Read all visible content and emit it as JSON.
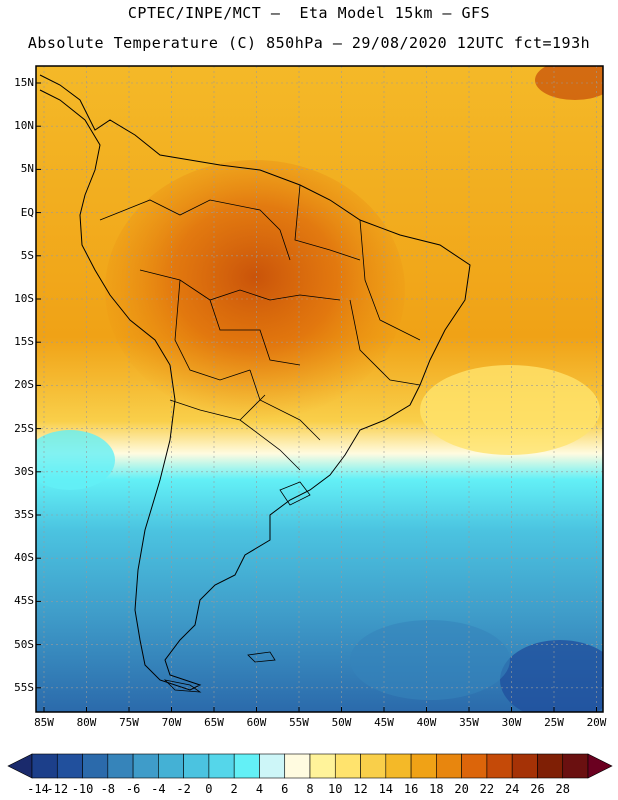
{
  "header": {
    "line1": "CPTEC/INPE/MCT –  Eta Model 15km – GFS",
    "line2": "Absolute Temperature (C) 850hPa – 29/08/2020 12UTC fct=193h"
  },
  "axes": {
    "lat_labels": [
      "15N",
      "10N",
      "5N",
      "EQ",
      "5S",
      "10S",
      "15S",
      "20S",
      "25S",
      "30S",
      "35S",
      "40S",
      "45S",
      "50S",
      "55S"
    ],
    "lon_labels": [
      "85W",
      "80W",
      "75W",
      "70W",
      "65W",
      "60W",
      "55W",
      "50W",
      "45W",
      "40W",
      "35W",
      "30W",
      "25W",
      "20W"
    ]
  },
  "colorbar": {
    "values": [
      "-14",
      "-12",
      "-10",
      "-8",
      "-6",
      "-4",
      "-2",
      "0",
      "2",
      "4",
      "6",
      "8",
      "10",
      "12",
      "14",
      "16",
      "18",
      "20",
      "22",
      "24",
      "26",
      "28"
    ],
    "colors": [
      "#1c3f8a",
      "#21509d",
      "#2b6aab",
      "#3684ba",
      "#3f9cc9",
      "#44b1d5",
      "#4bc3e0",
      "#55d6ea",
      "#63f0f6",
      "#cdf6f8",
      "#fffbe0",
      "#fff39a",
      "#ffe36d",
      "#f9cf4a",
      "#f4b928",
      "#f0a216",
      "#e8860e",
      "#dc650a",
      "#c54a08",
      "#a53206",
      "#7f1f05",
      "#6a1010"
    ],
    "low_arrow_color": "#1a2a6c",
    "high_arrow_color": "#6a0020"
  },
  "map": {
    "ocean_north_color": "#f0a216",
    "continent_hot_color": "#dc650a",
    "continent_warm_color": "#e8860e",
    "southern_cold_color": "#3f9cc9",
    "border_color": "#000000"
  }
}
